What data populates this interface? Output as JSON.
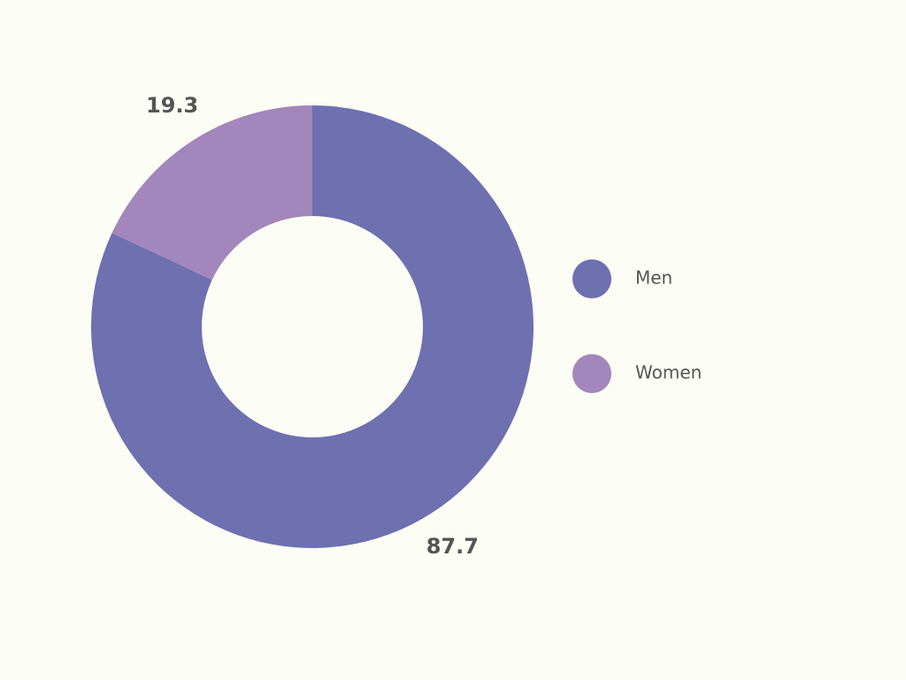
{
  "chart_data": {
    "type": "donut",
    "categories": [
      "Men",
      "Women"
    ],
    "values": [
      87.7,
      19.3
    ],
    "colors": [
      "#6e70b0",
      "#a386bb"
    ],
    "legend": "right"
  }
}
